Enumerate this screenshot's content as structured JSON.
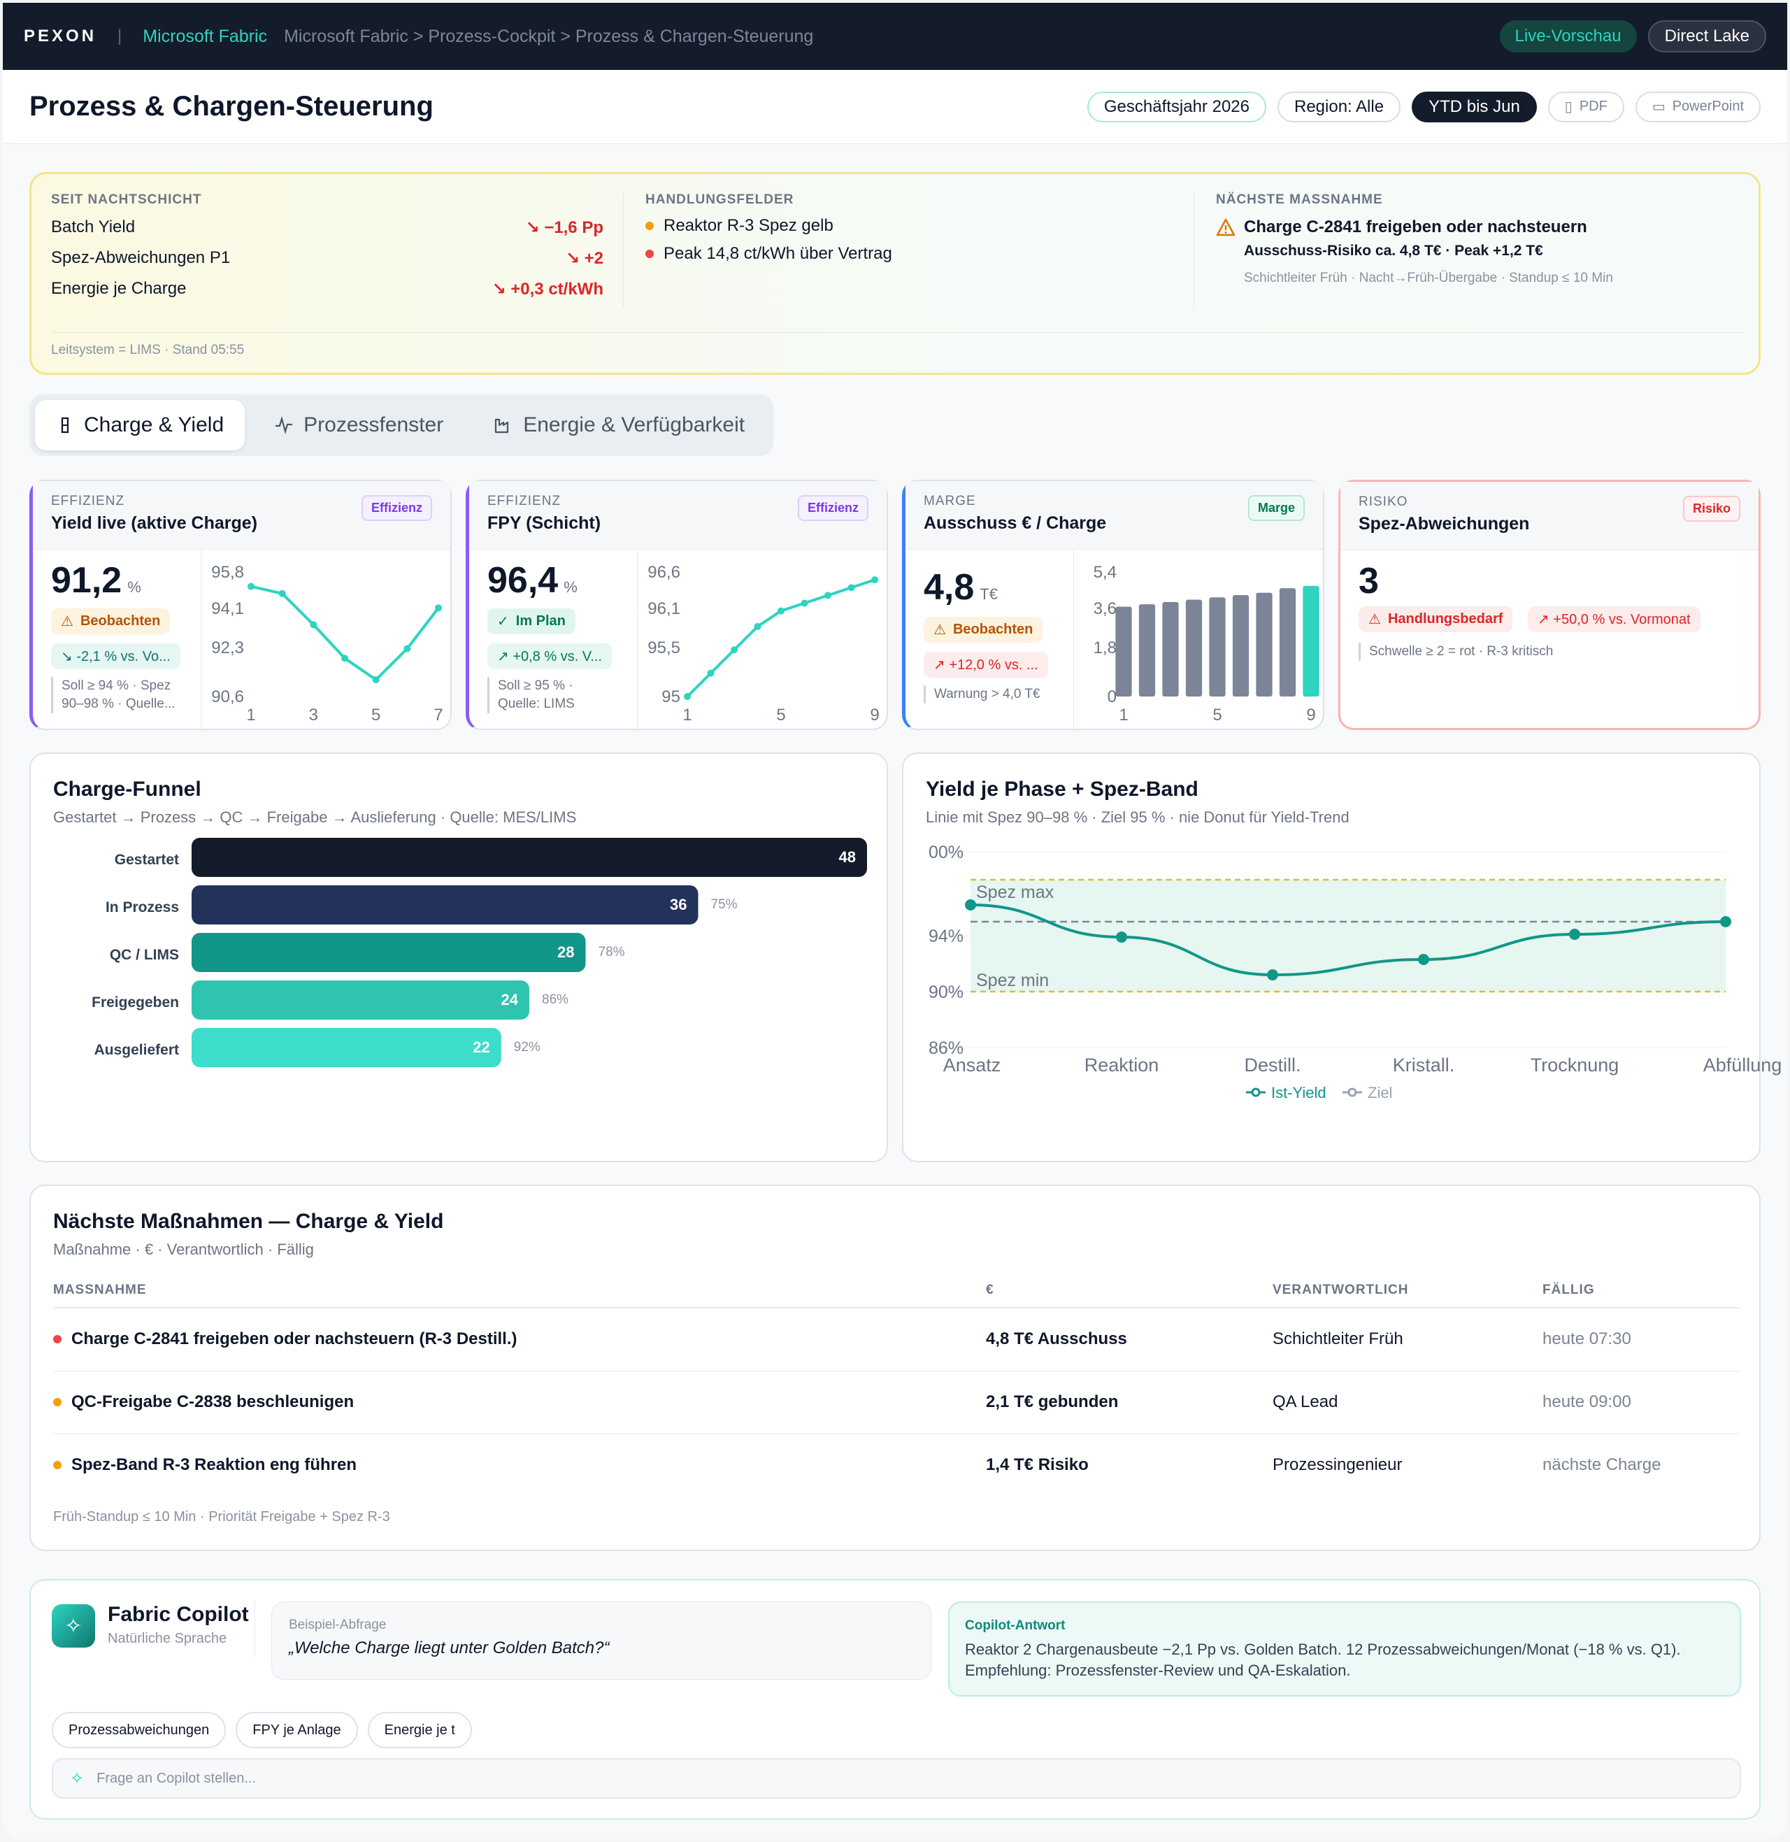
{
  "topbar": {
    "logo": "PEXON",
    "separator": "|",
    "product": "Microsoft Fabric",
    "breadcrumb": "Microsoft Fabric > Prozess-Cockpit > Prozess & Chargen-Steuerung",
    "live": "Live-Vorschau",
    "mode": "Direct Lake"
  },
  "header": {
    "title": "Prozess & Chargen-Steuerung",
    "filters": [
      "Geschäftsjahr 2026",
      "Region: Alle",
      "YTD bis Jun"
    ],
    "pdf": "PDF",
    "ppt": "PowerPoint"
  },
  "summary": {
    "col1": {
      "caption": "SEIT NACHTSCHICHT",
      "rows": [
        {
          "label": "Batch Yield",
          "value": "↘ −1,6 Pp"
        },
        {
          "label": "Spez-Abweichungen P1",
          "value": "↘ +2"
        },
        {
          "label": "Energie je Charge",
          "value": "↘ +0,3 ct/kWh"
        }
      ]
    },
    "col2": {
      "caption": "HANDLUNGSFELDER",
      "items": [
        {
          "text": "Reaktor R-3 Spez gelb",
          "color": "#f59e0b"
        },
        {
          "text": "Peak 14,8 ct/kWh über Vertrag",
          "color": "#ef4444"
        }
      ]
    },
    "col3": {
      "caption": "NÄCHSTE MASSNAHME",
      "title": "Charge C-2841 freigeben oder nachsteuern",
      "detail": "Ausschuss-Risiko ca. 4,8 T€ · Peak +1,2 T€",
      "meta": "Schichtleiter Früh · Nacht→Früh-Übergabe · Standup ≤ 10 Min"
    },
    "footer": "Leitsystem = LIMS · Stand 05:55"
  },
  "tabs": [
    {
      "label": "Charge & Yield",
      "icon": "flask-icon"
    },
    {
      "label": "Prozessfenster",
      "icon": "pulse-icon"
    },
    {
      "label": "Energie & Verfügbarkeit",
      "icon": "factory-icon"
    }
  ],
  "kpis": [
    {
      "category": "EFFIZIENZ",
      "title": "Yield live (aktive Charge)",
      "tag": "Effizienz",
      "value": "91,2",
      "unit": "%",
      "status": "Beobachten",
      "delta": "↘ -2,1 % vs. Vo...",
      "note1": "Soll ≥ 94 % · Spez",
      "note2": "90–98 % · Quelle...",
      "accent": "#8b5cf6",
      "chart_data": {
        "type": "line",
        "x": [
          1,
          2,
          3,
          4,
          5,
          6,
          7
        ],
        "y": [
          95.2,
          94.9,
          93.6,
          92.2,
          91.3,
          92.6,
          94.3
        ],
        "ticks_y": [
          "95,8",
          "94,1",
          "92,3",
          "90,6"
        ],
        "ticks_x": [
          "1",
          "3",
          "5",
          "7"
        ],
        "ylim": [
          90.6,
          95.8
        ]
      }
    },
    {
      "category": "EFFIZIENZ",
      "title": "FPY (Schicht)",
      "tag": "Effizienz",
      "value": "96,4",
      "unit": "%",
      "status": "Im Plan",
      "delta": "↗ +0,8 % vs. V...",
      "note1": "Soll ≥ 95 % ·",
      "note2": "Quelle: LIMS",
      "accent": "#8b5cf6",
      "chart_data": {
        "type": "line",
        "x": [
          1,
          2,
          3,
          4,
          5,
          6,
          7,
          8,
          9
        ],
        "y": [
          95.0,
          95.3,
          95.6,
          95.9,
          96.1,
          96.2,
          96.3,
          96.4,
          96.5
        ],
        "ticks_y": [
          "96,6",
          "96,1",
          "95,5",
          "95"
        ],
        "ticks_x": [
          "1",
          "5",
          "9"
        ],
        "ylim": [
          95,
          96.6
        ]
      }
    },
    {
      "category": "MARGE",
      "title": "Ausschuss € / Charge",
      "tag": "Marge",
      "value": "4,8",
      "unit": "T€",
      "status": "Beobachten",
      "delta": "↗ +12,0 % vs. ...",
      "note1": "Warnung > 4,0 T€",
      "note2": "",
      "accent": "#3b82f6",
      "chart_data": {
        "type": "bar",
        "x": [
          1,
          2,
          3,
          4,
          5,
          6,
          7,
          8,
          9
        ],
        "values": [
          3.9,
          4.0,
          4.1,
          4.2,
          4.3,
          4.4,
          4.5,
          4.7,
          4.8
        ],
        "ticks_y": [
          "5,4",
          "3,6",
          "1,8",
          "0"
        ],
        "ticks_x": [
          "1",
          "5",
          "9"
        ],
        "ylim": [
          0,
          5.4
        ]
      }
    },
    {
      "category": "RISIKO",
      "title": "Spez-Abweichungen",
      "tag": "Risiko",
      "value": "3",
      "status": "Handlungsbedarf",
      "delta": "↗ +50,0 % vs. Vormonat",
      "note1": "Schwelle ≥ 2 = rot · R-3 kritisch",
      "accent": "#f87171"
    }
  ],
  "funnel": {
    "title": "Charge-Funnel",
    "subtitle": "Gestartet → Prozess → QC → Freigabe → Auslieferung · Quelle: MES/LIMS",
    "chart_data": {
      "type": "bar",
      "categories": [
        "Gestartet",
        "In Prozess",
        "QC / LIMS",
        "Freigegeben",
        "Ausgeliefert"
      ],
      "values": [
        48,
        36,
        28,
        24,
        22
      ],
      "conversion": [
        "",
        "75%",
        "78%",
        "86%",
        "92%"
      ],
      "colors": [
        "#141b2b",
        "#22325a",
        "#129688",
        "#2ec4b0",
        "#3ddccb"
      ]
    }
  },
  "phase": {
    "title": "Yield je Phase + Spez-Band",
    "subtitle": "Linie mit Spez 90–98 % · Ziel 95 % · nie Donut für Yield-Trend",
    "chart_data": {
      "type": "line",
      "categories": [
        "Ansatz",
        "Reaktion",
        "Destill.",
        "Kristall.",
        "Trocknung",
        "Abfüllung"
      ],
      "series": [
        {
          "name": "Ist-Yield",
          "values": [
            96.2,
            93.9,
            91.2,
            92.3,
            94.1,
            95.0
          ]
        },
        {
          "name": "Ziel",
          "values": [
            95,
            95,
            95,
            95,
            95,
            95
          ]
        }
      ],
      "band": [
        90,
        98
      ],
      "band_labels": [
        "Spez max",
        "Spez min"
      ],
      "ticks_y": [
        "00%",
        "94%",
        "90%",
        "86%"
      ],
      "ylim": [
        86,
        100
      ]
    }
  },
  "actions": {
    "title": "Nächste Maßnahmen — Charge & Yield",
    "subtitle": "Maßnahme · € · Verantwortlich · Fällig",
    "headers": [
      "MASSNAHME",
      "€",
      "VERANTWORTLICH",
      "FÄLLIG"
    ],
    "rows": [
      {
        "name": "Charge C-2841 freigeben oder nachsteuern (R-3 Destill.)",
        "eur": "4,8 T€ Ausschuss",
        "owner": "Schichtleiter Früh",
        "due": "heute 07:30",
        "color": "#ef4444"
      },
      {
        "name": "QC-Freigabe C-2838 beschleunigen",
        "eur": "2,1 T€ gebunden",
        "owner": "QA Lead",
        "due": "heute 09:00",
        "color": "#f59e0b"
      },
      {
        "name": "Spez-Band R-3 Reaktion eng führen",
        "eur": "1,4 T€ Risiko",
        "owner": "Prozessingenieur",
        "due": "nächste Charge",
        "color": "#f59e0b"
      }
    ],
    "footer": "Früh-Standup ≤ 10 Min · Priorität Freigabe + Spez R-3"
  },
  "copilot": {
    "title": "Fabric Copilot",
    "subtitle": "Natürliche Sprache",
    "example_label": "Beispiel-Abfrage",
    "example": "„Welche Charge liegt unter Golden Batch?“",
    "answer_label": "Copilot-Antwort",
    "answer": "Reaktor 2 Chargenausbeute −2,1 Pp vs. Golden Batch. 12 Prozessabweichungen/Monat (−18 % vs. Q1). Empfehlung: Prozessfenster-Review und QA-Eskalation.",
    "chips": [
      "Prozessabweichungen",
      "FPY je Anlage",
      "Energie je t"
    ],
    "placeholder": "Frage an Copilot stellen..."
  }
}
